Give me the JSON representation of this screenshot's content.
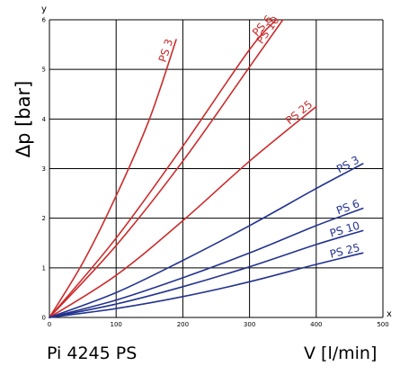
{
  "chart_data": {
    "type": "line",
    "title": "Pi 4245 PS",
    "xlabel": "V [l/min]",
    "ylabel": "Δp [bar]",
    "x_axis_letter": "x",
    "y_axis_letter": "y",
    "xlim": [
      0,
      500
    ],
    "ylim": [
      0,
      6
    ],
    "xticks": [
      0,
      100,
      200,
      300,
      400,
      500
    ],
    "yticks": [
      0,
      1,
      2,
      3,
      4,
      5,
      6
    ],
    "grid": true,
    "colors": {
      "red": "#cc2b2b",
      "blue": "#23338f",
      "grid": "#000000"
    },
    "series": [
      {
        "name": "PS 3",
        "color": "#cc2b2b",
        "points": [
          [
            0,
            0
          ],
          [
            50,
            1.1
          ],
          [
            100,
            2.45
          ],
          [
            150,
            4.0
          ],
          [
            190,
            5.6
          ]
        ]
      },
      {
        "name": "PS 6",
        "color": "#cc2b2b",
        "points": [
          [
            0,
            0
          ],
          [
            100,
            1.6
          ],
          [
            200,
            3.45
          ],
          [
            300,
            5.4
          ],
          [
            340,
            6.0
          ]
        ]
      },
      {
        "name": "PS 10",
        "color": "#cc2b2b",
        "points": [
          [
            0,
            0
          ],
          [
            100,
            1.45
          ],
          [
            200,
            3.15
          ],
          [
            300,
            5.05
          ],
          [
            350,
            6.0
          ]
        ]
      },
      {
        "name": "PS 25",
        "color": "#cc2b2b",
        "points": [
          [
            0,
            0
          ],
          [
            100,
            0.85
          ],
          [
            200,
            1.95
          ],
          [
            300,
            3.15
          ],
          [
            400,
            4.25
          ]
        ]
      },
      {
        "name": "PS 3",
        "color": "#23338f",
        "points": [
          [
            0,
            0
          ],
          [
            100,
            0.5
          ],
          [
            200,
            1.15
          ],
          [
            300,
            1.85
          ],
          [
            400,
            2.6
          ],
          [
            470,
            3.1
          ]
        ]
      },
      {
        "name": "PS 6",
        "color": "#23338f",
        "points": [
          [
            0,
            0
          ],
          [
            100,
            0.35
          ],
          [
            200,
            0.8
          ],
          [
            300,
            1.3
          ],
          [
            400,
            1.85
          ],
          [
            470,
            2.2
          ]
        ]
      },
      {
        "name": "PS 10",
        "color": "#23338f",
        "points": [
          [
            0,
            0
          ],
          [
            100,
            0.27
          ],
          [
            200,
            0.62
          ],
          [
            300,
            1.02
          ],
          [
            400,
            1.47
          ],
          [
            470,
            1.75
          ]
        ]
      },
      {
        "name": "PS 25",
        "color": "#23338f",
        "points": [
          [
            0,
            0
          ],
          [
            100,
            0.18
          ],
          [
            200,
            0.42
          ],
          [
            300,
            0.72
          ],
          [
            400,
            1.07
          ],
          [
            470,
            1.3
          ]
        ]
      }
    ]
  }
}
